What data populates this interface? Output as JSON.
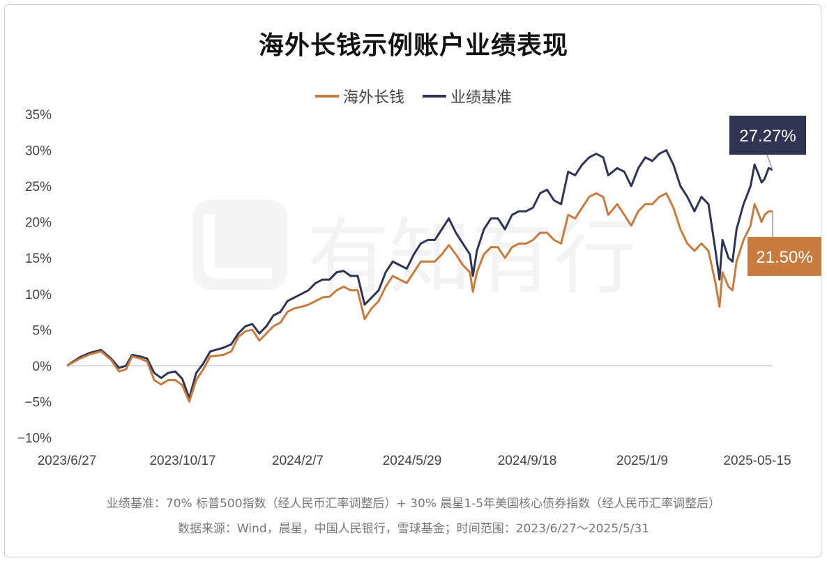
{
  "chart_data": {
    "type": "line",
    "title": "海外长钱示例账户业绩表现",
    "x_tick_labels": [
      "2023/6/27",
      "2023/10/17",
      "2024/2/7",
      "2024/5/29",
      "2024/9/18",
      "2025/1/9",
      "2025-05-15"
    ],
    "y_tick_labels": [
      "35%",
      "30%",
      "25%",
      "20%",
      "15%",
      "10%",
      "5%",
      "0%",
      "−5%",
      "−10%"
    ],
    "ylim": [
      -10,
      35
    ],
    "x_range": [
      "2023-06-27",
      "2025-05-31"
    ],
    "grid": false,
    "legend_position": "top-center",
    "series": [
      {
        "name": "海外长钱",
        "color": "#C77B3F",
        "end_label": "21.50%",
        "points": [
          [
            "2023-06-27",
            0
          ],
          [
            "2023-07-10",
            1.0
          ],
          [
            "2023-07-20",
            1.6
          ],
          [
            "2023-07-31",
            2.0
          ],
          [
            "2023-08-10",
            0.8
          ],
          [
            "2023-08-18",
            -0.8
          ],
          [
            "2023-08-25",
            -0.5
          ],
          [
            "2023-08-31",
            1.3
          ],
          [
            "2023-09-08",
            1.0
          ],
          [
            "2023-09-15",
            0.6
          ],
          [
            "2023-09-22",
            -2.0
          ],
          [
            "2023-09-29",
            -2.6
          ],
          [
            "2023-10-06",
            -2.0
          ],
          [
            "2023-10-13",
            -2.0
          ],
          [
            "2023-10-20",
            -2.7
          ],
          [
            "2023-10-27",
            -5.0
          ],
          [
            "2023-11-03",
            -2.0
          ],
          [
            "2023-11-10",
            -0.5
          ],
          [
            "2023-11-17",
            1.3
          ],
          [
            "2023-11-30",
            1.5
          ],
          [
            "2023-12-08",
            2.0
          ],
          [
            "2023-12-15",
            4.0
          ],
          [
            "2023-12-22",
            4.8
          ],
          [
            "2023-12-29",
            5.0
          ],
          [
            "2024-01-05",
            3.5
          ],
          [
            "2024-01-12",
            4.5
          ],
          [
            "2024-01-19",
            5.5
          ],
          [
            "2024-01-26",
            6.0
          ],
          [
            "2024-02-02",
            7.5
          ],
          [
            "2024-02-09",
            8.0
          ],
          [
            "2024-02-16",
            8.2
          ],
          [
            "2024-02-23",
            8.5
          ],
          [
            "2024-03-01",
            9.0
          ],
          [
            "2024-03-08",
            9.5
          ],
          [
            "2024-03-15",
            9.6
          ],
          [
            "2024-03-22",
            10.5
          ],
          [
            "2024-03-29",
            11.0
          ],
          [
            "2024-04-05",
            10.5
          ],
          [
            "2024-04-12",
            10.5
          ],
          [
            "2024-04-19",
            6.5
          ],
          [
            "2024-04-26",
            8.0
          ],
          [
            "2024-05-03",
            9.0
          ],
          [
            "2024-05-10",
            11.0
          ],
          [
            "2024-05-17",
            12.5
          ],
          [
            "2024-05-24",
            12.0
          ],
          [
            "2024-05-31",
            11.5
          ],
          [
            "2024-06-07",
            13.0
          ],
          [
            "2024-06-14",
            14.5
          ],
          [
            "2024-06-21",
            14.5
          ],
          [
            "2024-06-28",
            14.5
          ],
          [
            "2024-07-05",
            15.5
          ],
          [
            "2024-07-12",
            16.8
          ],
          [
            "2024-07-19",
            15.5
          ],
          [
            "2024-07-26",
            14.0
          ],
          [
            "2024-08-02",
            13.0
          ],
          [
            "2024-08-05",
            10.3
          ],
          [
            "2024-08-09",
            13.0
          ],
          [
            "2024-08-16",
            15.5
          ],
          [
            "2024-08-23",
            16.5
          ],
          [
            "2024-08-30",
            16.5
          ],
          [
            "2024-09-06",
            15.0
          ],
          [
            "2024-09-13",
            16.5
          ],
          [
            "2024-09-20",
            17.0
          ],
          [
            "2024-09-27",
            17.0
          ],
          [
            "2024-10-04",
            17.5
          ],
          [
            "2024-10-11",
            18.5
          ],
          [
            "2024-10-18",
            18.5
          ],
          [
            "2024-10-25",
            17.5
          ],
          [
            "2024-11-01",
            17.0
          ],
          [
            "2024-11-08",
            21.0
          ],
          [
            "2024-11-15",
            20.5
          ],
          [
            "2024-11-22",
            22.0
          ],
          [
            "2024-11-29",
            23.5
          ],
          [
            "2024-12-06",
            24.0
          ],
          [
            "2024-12-13",
            23.5
          ],
          [
            "2024-12-18",
            21.0
          ],
          [
            "2024-12-27",
            22.5
          ],
          [
            "2025-01-03",
            21.0
          ],
          [
            "2025-01-10",
            19.5
          ],
          [
            "2025-01-17",
            21.5
          ],
          [
            "2025-01-24",
            22.5
          ],
          [
            "2025-01-31",
            22.5
          ],
          [
            "2025-02-07",
            23.5
          ],
          [
            "2025-02-14",
            24.0
          ],
          [
            "2025-02-21",
            22.0
          ],
          [
            "2025-02-28",
            19.0
          ],
          [
            "2025-03-07",
            17.0
          ],
          [
            "2025-03-14",
            16.0
          ],
          [
            "2025-03-21",
            17.0
          ],
          [
            "2025-03-28",
            16.0
          ],
          [
            "2025-04-04",
            11.5
          ],
          [
            "2025-04-08",
            8.2
          ],
          [
            "2025-04-11",
            13.0
          ],
          [
            "2025-04-17",
            11.0
          ],
          [
            "2025-04-21",
            10.5
          ],
          [
            "2025-04-25",
            14.5
          ],
          [
            "2025-05-02",
            17.5
          ],
          [
            "2025-05-09",
            19.5
          ],
          [
            "2025-05-13",
            22.5
          ],
          [
            "2025-05-16",
            21.5
          ],
          [
            "2025-05-20",
            20.0
          ],
          [
            "2025-05-23",
            21.0
          ],
          [
            "2025-05-27",
            21.5
          ],
          [
            "2025-05-31",
            21.5
          ]
        ]
      },
      {
        "name": "业绩基准",
        "color": "#2E3452",
        "end_label": "27.27%",
        "points": [
          [
            "2023-06-27",
            0
          ],
          [
            "2023-07-10",
            1.2
          ],
          [
            "2023-07-20",
            1.8
          ],
          [
            "2023-07-31",
            2.2
          ],
          [
            "2023-08-10",
            1.0
          ],
          [
            "2023-08-18",
            -0.3
          ],
          [
            "2023-08-25",
            0.0
          ],
          [
            "2023-08-31",
            1.5
          ],
          [
            "2023-09-08",
            1.3
          ],
          [
            "2023-09-15",
            1.0
          ],
          [
            "2023-09-22",
            -1.0
          ],
          [
            "2023-09-29",
            -1.7
          ],
          [
            "2023-10-06",
            -1.0
          ],
          [
            "2023-10-13",
            -0.8
          ],
          [
            "2023-10-20",
            -1.8
          ],
          [
            "2023-10-27",
            -4.5
          ],
          [
            "2023-11-03",
            -1.0
          ],
          [
            "2023-11-10",
            0.3
          ],
          [
            "2023-11-17",
            2.0
          ],
          [
            "2023-11-30",
            2.5
          ],
          [
            "2023-12-08",
            3.0
          ],
          [
            "2023-12-15",
            4.5
          ],
          [
            "2023-12-22",
            5.5
          ],
          [
            "2023-12-29",
            5.8
          ],
          [
            "2024-01-05",
            4.5
          ],
          [
            "2024-01-12",
            5.5
          ],
          [
            "2024-01-19",
            7.0
          ],
          [
            "2024-01-26",
            7.5
          ],
          [
            "2024-02-02",
            9.0
          ],
          [
            "2024-02-09",
            9.5
          ],
          [
            "2024-02-16",
            10.0
          ],
          [
            "2024-02-23",
            10.5
          ],
          [
            "2024-03-01",
            11.5
          ],
          [
            "2024-03-08",
            12.0
          ],
          [
            "2024-03-15",
            12.0
          ],
          [
            "2024-03-22",
            13.0
          ],
          [
            "2024-03-29",
            13.2
          ],
          [
            "2024-04-05",
            12.5
          ],
          [
            "2024-04-12",
            12.5
          ],
          [
            "2024-04-19",
            8.5
          ],
          [
            "2024-04-26",
            9.5
          ],
          [
            "2024-05-03",
            10.5
          ],
          [
            "2024-05-10",
            13.0
          ],
          [
            "2024-05-17",
            14.5
          ],
          [
            "2024-05-24",
            14.0
          ],
          [
            "2024-05-31",
            13.5
          ],
          [
            "2024-06-07",
            15.5
          ],
          [
            "2024-06-14",
            17.0
          ],
          [
            "2024-06-21",
            17.5
          ],
          [
            "2024-06-28",
            17.5
          ],
          [
            "2024-07-05",
            19.0
          ],
          [
            "2024-07-12",
            20.5
          ],
          [
            "2024-07-19",
            18.5
          ],
          [
            "2024-07-26",
            17.0
          ],
          [
            "2024-08-02",
            15.5
          ],
          [
            "2024-08-05",
            12.5
          ],
          [
            "2024-08-09",
            16.0
          ],
          [
            "2024-08-16",
            19.0
          ],
          [
            "2024-08-23",
            20.5
          ],
          [
            "2024-08-30",
            20.5
          ],
          [
            "2024-09-06",
            19.0
          ],
          [
            "2024-09-13",
            21.0
          ],
          [
            "2024-09-20",
            21.5
          ],
          [
            "2024-09-27",
            21.5
          ],
          [
            "2024-10-04",
            22.0
          ],
          [
            "2024-10-11",
            24.0
          ],
          [
            "2024-10-18",
            24.5
          ],
          [
            "2024-10-25",
            23.0
          ],
          [
            "2024-11-01",
            22.5
          ],
          [
            "2024-11-08",
            27.0
          ],
          [
            "2024-11-15",
            26.5
          ],
          [
            "2024-11-22",
            28.0
          ],
          [
            "2024-11-29",
            29.0
          ],
          [
            "2024-12-06",
            29.5
          ],
          [
            "2024-12-13",
            29.0
          ],
          [
            "2024-12-18",
            26.5
          ],
          [
            "2024-12-27",
            27.5
          ],
          [
            "2025-01-03",
            27.0
          ],
          [
            "2025-01-10",
            25.0
          ],
          [
            "2025-01-17",
            27.5
          ],
          [
            "2025-01-24",
            29.0
          ],
          [
            "2025-01-31",
            28.5
          ],
          [
            "2025-02-07",
            29.5
          ],
          [
            "2025-02-14",
            30.0
          ],
          [
            "2025-02-21",
            28.0
          ],
          [
            "2025-02-28",
            25.0
          ],
          [
            "2025-03-07",
            23.5
          ],
          [
            "2025-03-14",
            21.5
          ],
          [
            "2025-03-21",
            23.5
          ],
          [
            "2025-03-28",
            22.5
          ],
          [
            "2025-04-04",
            16.0
          ],
          [
            "2025-04-08",
            12.0
          ],
          [
            "2025-04-11",
            17.5
          ],
          [
            "2025-04-17",
            15.0
          ],
          [
            "2025-04-21",
            14.5
          ],
          [
            "2025-04-25",
            19.0
          ],
          [
            "2025-05-02",
            22.5
          ],
          [
            "2025-05-09",
            25.0
          ],
          [
            "2025-05-13",
            28.0
          ],
          [
            "2025-05-16",
            27.0
          ],
          [
            "2025-05-20",
            25.5
          ],
          [
            "2025-05-23",
            26.0
          ],
          [
            "2025-05-27",
            27.5
          ],
          [
            "2025-05-31",
            27.27
          ]
        ]
      }
    ]
  },
  "watermark": "有知有行",
  "footnotes": {
    "benchmark": "业绩基准：70% 标普500指数（经人民币汇率调整后）+ 30% 晨星1-5年美国核心债券指数（经人民币汇率调整后）",
    "source": "数据来源：Wind，晨星，中国人民银行，雪球基金；时间范围：2023/6/27～2025/5/31"
  }
}
